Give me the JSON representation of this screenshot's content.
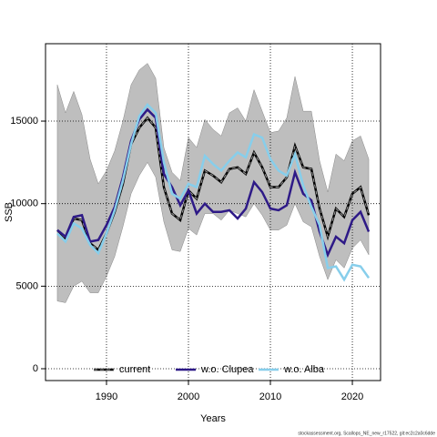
{
  "chart_data": {
    "type": "line",
    "x_label": "Years",
    "y_label": "SSB",
    "source": "stockassessment.org, Scallops_NE_new_r17522, git:ec2c2a0c6dde",
    "x": [
      1984,
      1985,
      1986,
      1987,
      1988,
      1989,
      1990,
      1991,
      1992,
      1993,
      1994,
      1995,
      1996,
      1997,
      1998,
      1999,
      2000,
      2001,
      2002,
      2003,
      2004,
      2005,
      2006,
      2007,
      2008,
      2009,
      2010,
      2011,
      2012,
      2013,
      2014,
      2015,
      2016,
      2017,
      2018,
      2019,
      2020,
      2021,
      2022
    ],
    "band": {
      "color": "#bebebe",
      "lower": [
        4100,
        4000,
        5000,
        5300,
        4600,
        4600,
        5600,
        6800,
        8600,
        10600,
        11700,
        12500,
        11600,
        8900,
        7200,
        7100,
        8500,
        8100,
        9400,
        9400,
        9000,
        9600,
        9400,
        9200,
        10000,
        9300,
        8400,
        8400,
        8700,
        10000,
        8900,
        8600,
        6800,
        5400,
        6600,
        6100,
        7300,
        7800,
        6900
      ],
      "upper": [
        17200,
        15500,
        16800,
        15400,
        12700,
        11200,
        12000,
        13200,
        15000,
        17200,
        18100,
        18500,
        17600,
        13400,
        11900,
        11400,
        14000,
        13400,
        15100,
        14500,
        14100,
        15500,
        15800,
        15000,
        16900,
        15600,
        14300,
        14400,
        15200,
        17700,
        15600,
        15600,
        12600,
        10700,
        13000,
        12600,
        13800,
        14100,
        12700
      ]
    },
    "series": [
      {
        "name": "current",
        "color": "#000000",
        "values": [
          8400,
          7900,
          9100,
          9000,
          7600,
          7200,
          8200,
          9500,
          11200,
          13600,
          14600,
          15200,
          14600,
          11000,
          9400,
          9000,
          10800,
          10300,
          12000,
          11700,
          11300,
          12100,
          12200,
          11800,
          13100,
          12200,
          11000,
          11000,
          11600,
          13500,
          12200,
          12100,
          9700,
          8000,
          9700,
          9200,
          10600,
          11000,
          9300
        ]
      },
      {
        "name": "w.o. Clupea",
        "color": "#2e1a87",
        "values": [
          8400,
          8000,
          9200,
          9300,
          7700,
          7800,
          8700,
          9800,
          11600,
          13800,
          15100,
          15700,
          15200,
          11800,
          11000,
          9900,
          10800,
          9400,
          10000,
          9500,
          9500,
          9600,
          9100,
          9700,
          11300,
          10700,
          9700,
          9600,
          9900,
          11900,
          10600,
          10200,
          8300,
          6900,
          8000,
          7600,
          9000,
          9500,
          8300
        ]
      },
      {
        "name": "w.o. Alba",
        "color": "#87ceeb",
        "values": [
          8200,
          7700,
          8800,
          8500,
          7500,
          7000,
          8200,
          9600,
          11400,
          13600,
          15300,
          16000,
          15500,
          12500,
          10600,
          10300,
          11200,
          11000,
          12900,
          12400,
          12000,
          12600,
          13100,
          12800,
          14200,
          14000,
          12700,
          12000,
          11700,
          13000,
          11100,
          9800,
          8700,
          6100,
          6200,
          5400,
          6300,
          6200,
          5500
        ]
      }
    ],
    "xlim": [
      1982.56,
      2023.44
    ],
    "xticks": [
      1990,
      2000,
      2010,
      2020
    ],
    "ylim": [
      -717,
      19690
    ],
    "yticks": [
      0,
      5000,
      10000,
      15000
    ],
    "grid": true,
    "legend": "bottom"
  }
}
